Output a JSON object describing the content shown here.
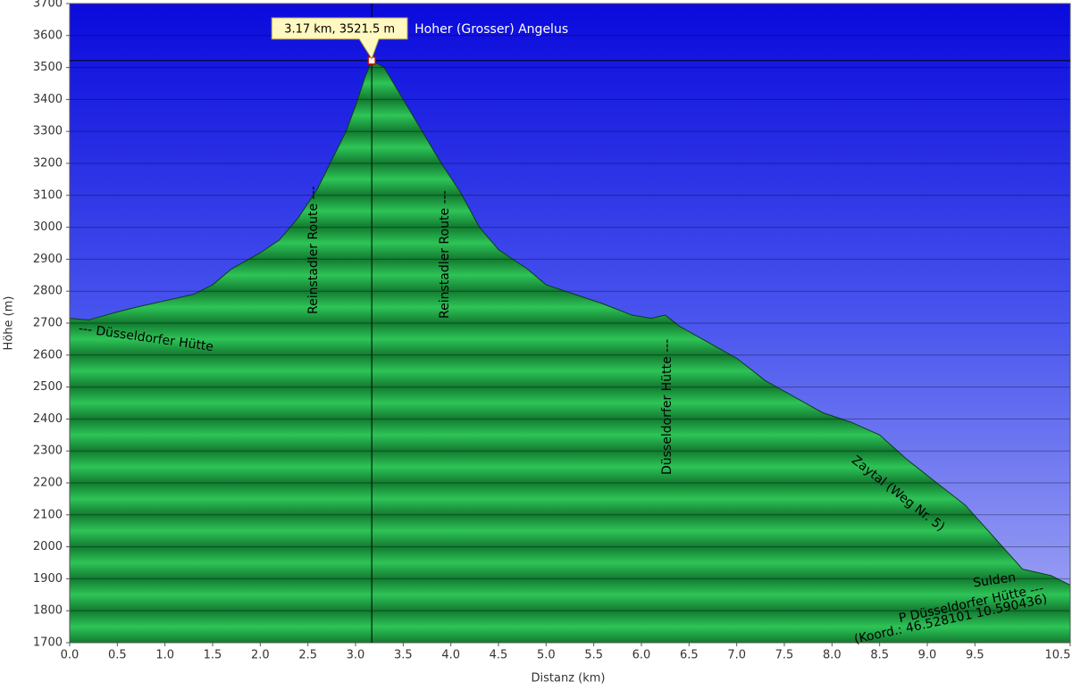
{
  "chart_data": {
    "type": "area",
    "xlabel": "Distanz  (km)",
    "ylabel": "Höhe (m)",
    "xlim": [
      0,
      10.5
    ],
    "ylim": [
      1700,
      3700
    ],
    "xticks": [
      {
        "value": 0,
        "label": "0.0"
      },
      0.5,
      {
        "value": 1,
        "label": "1.0"
      },
      1.5,
      {
        "value": 2,
        "label": "2.0"
      },
      2.5,
      {
        "value": 3,
        "label": "3.0"
      },
      3.5,
      {
        "value": 4,
        "label": "4.0"
      },
      4.5,
      {
        "value": 5,
        "label": "5.0"
      },
      5.5,
      {
        "value": 6,
        "label": "6.0"
      },
      6.5,
      {
        "value": 7,
        "label": "7.0"
      },
      7.5,
      {
        "value": 8,
        "label": "8.0"
      },
      8.5,
      {
        "value": 9,
        "label": "9.0"
      },
      9.5,
      10.5
    ],
    "yticks": [
      1700,
      1800,
      1900,
      2000,
      2100,
      2200,
      2300,
      2400,
      2500,
      2600,
      2700,
      2800,
      2900,
      3000,
      3100,
      3200,
      3300,
      3400,
      3500,
      3600,
      3700
    ],
    "grid": true,
    "series": [
      {
        "color": "#1f9e45",
        "x": [
          0,
          0.2,
          0.5,
          0.7,
          1,
          1.3,
          1.5,
          1.7,
          2,
          2.2,
          2.4,
          2.6,
          2.8,
          2.9,
          3,
          3.1,
          3.17,
          3.3,
          3.5,
          3.7,
          3.9,
          4.1,
          4.3,
          4.5,
          4.8,
          5,
          5.3,
          5.6,
          5.9,
          6.1,
          6.25,
          6.4,
          6.7,
          7,
          7.3,
          7.6,
          7.9,
          8.2,
          8.5,
          8.8,
          9.1,
          9.4,
          9.7,
          10,
          10.3,
          10.5
        ],
        "values": [
          2715,
          2710,
          2735,
          2750,
          2770,
          2790,
          2820,
          2870,
          2920,
          2960,
          3030,
          3120,
          3240,
          3300,
          3380,
          3470,
          3521.5,
          3500,
          3400,
          3300,
          3200,
          3110,
          3000,
          2930,
          2870,
          2820,
          2790,
          2760,
          2725,
          2715,
          2725,
          2690,
          2640,
          2590,
          2520,
          2470,
          2420,
          2390,
          2350,
          2270,
          2200,
          2130,
          2030,
          1930,
          1910,
          1880
        ]
      }
    ],
    "marker": {
      "x": 3.17,
      "y": 3521.5,
      "label": "3.17 km, 3521.5 m",
      "name": "Hoher (Grosser) Angelus"
    },
    "annotations": [
      "--- Düsseldorfer Hütte",
      "Reinstadler Route ---",
      "Reinstadler Route ---",
      "Düsseldorfer Hütte ---",
      "Zaytal (Weg Nr. 5)",
      "Sulden",
      "P Düsseldorfer Hütte ---",
      "(Koord.: 46.528101  10.590436)"
    ]
  }
}
